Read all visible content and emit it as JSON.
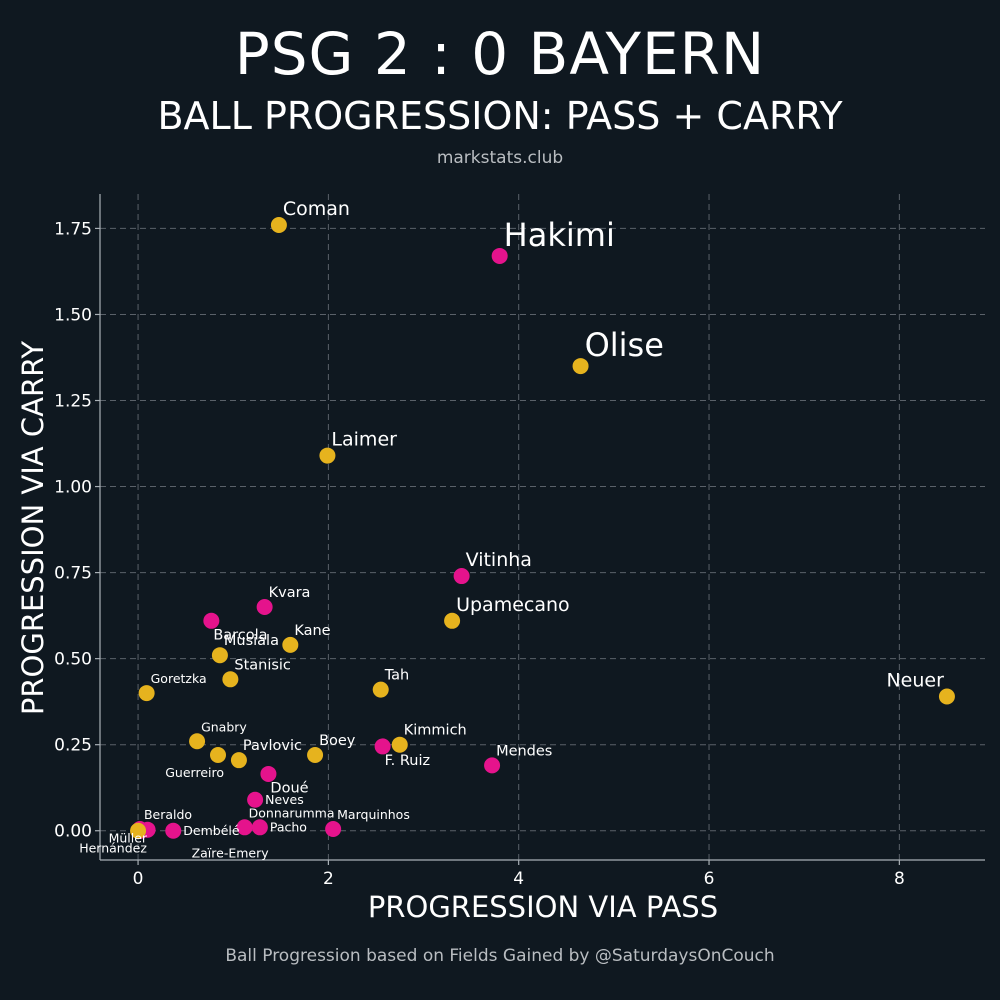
{
  "header": {
    "title": "PSG 2 : 0 BAYERN",
    "subtitle": "BALL PROGRESSION: PASS + CARRY",
    "source": "markstats.club"
  },
  "footer": {
    "note": "Ball Progression based on Fields Gained by @SaturdaysOnCouch"
  },
  "colors": {
    "background": "#0f1820",
    "psg": "#e5138c",
    "bayern": "#e6b31e",
    "grid": "#5a6169",
    "axis": "#a9b0b6",
    "text": "#ffffff",
    "muted": "#b9bdc1"
  },
  "chart_data": {
    "type": "scatter",
    "title": "PSG 2 : 0 BAYERN",
    "subtitle": "BALL PROGRESSION: PASS + CARRY",
    "xlabel": "PROGRESSION VIA PASS",
    "ylabel": "PROGRESSION VIA CARRY",
    "xlim": [
      -0.4,
      8.9
    ],
    "ylim": [
      -0.085,
      1.85
    ],
    "xticks": [
      0,
      2,
      4,
      6,
      8
    ],
    "xtick_labels": [
      "0",
      "2",
      "4",
      "6",
      "8"
    ],
    "yticks": [
      0,
      0.25,
      0.5,
      0.75,
      1.0,
      1.25,
      1.5,
      1.75
    ],
    "ytick_labels": [
      "0.00",
      "0.25",
      "0.50",
      "0.75",
      "1.00",
      "1.25",
      "1.50",
      "1.75"
    ],
    "grid": true,
    "series": [
      {
        "name": "PSG",
        "color": "#e5138c",
        "points": [
          {
            "label": "Hakimi",
            "x": 3.8,
            "y": 1.67,
            "size": "xl",
            "anchor": "upper-right"
          },
          {
            "label": "Vitinha",
            "x": 3.4,
            "y": 0.74,
            "size": "l",
            "anchor": "upper-right"
          },
          {
            "label": "Kvara",
            "x": 1.33,
            "y": 0.65,
            "size": "m",
            "anchor": "upper-right"
          },
          {
            "label": "Barcola",
            "x": 0.77,
            "y": 0.61,
            "size": "m",
            "anchor": "lower-right"
          },
          {
            "label": "F. Ruiz",
            "x": 2.57,
            "y": 0.245,
            "size": "m",
            "anchor": "lower-right"
          },
          {
            "label": "Mendes",
            "x": 3.72,
            "y": 0.19,
            "size": "m",
            "anchor": "upper-right"
          },
          {
            "label": "Doué",
            "x": 1.37,
            "y": 0.165,
            "size": "m",
            "anchor": "lower-right"
          },
          {
            "label": "Neves",
            "x": 1.23,
            "y": 0.09,
            "size": "s",
            "anchor": "right"
          },
          {
            "label": "Marquinhos",
            "x": 2.05,
            "y": 0.005,
            "size": "s",
            "anchor": "upper-right"
          },
          {
            "label": "Donnarumma",
            "x": 1.12,
            "y": 0.01,
            "size": "s",
            "anchor": "upper-right"
          },
          {
            "label": "Pacho",
            "x": 1.28,
            "y": 0.01,
            "size": "s",
            "anchor": "right"
          },
          {
            "label": "Dembélé",
            "x": 0.37,
            "y": 0.0,
            "size": "s",
            "anchor": "right"
          },
          {
            "label": "Zaïre-Emery",
            "x": 0.1,
            "y": 0.003,
            "size": "s",
            "anchor": "far-lower-right"
          },
          {
            "label": "Beraldo",
            "x": 0.02,
            "y": 0.005,
            "size": "s",
            "anchor": "upper-right"
          },
          {
            "label": "Hernández",
            "x": 0.03,
            "y": 0.0,
            "size": "s",
            "anchor": "lower-left"
          }
        ]
      },
      {
        "name": "Bayern",
        "color": "#e6b31e",
        "points": [
          {
            "label": "Coman",
            "x": 1.48,
            "y": 1.76,
            "size": "l",
            "anchor": "upper-right"
          },
          {
            "label": "Olise",
            "x": 4.65,
            "y": 1.35,
            "size": "xl",
            "anchor": "upper-right"
          },
          {
            "label": "Laimer",
            "x": 1.99,
            "y": 1.09,
            "size": "l",
            "anchor": "upper-right"
          },
          {
            "label": "Upamecano",
            "x": 3.3,
            "y": 0.61,
            "size": "l",
            "anchor": "upper-right"
          },
          {
            "label": "Neuer",
            "x": 8.5,
            "y": 0.39,
            "size": "l",
            "anchor": "upper-left"
          },
          {
            "label": "Tah",
            "x": 2.55,
            "y": 0.41,
            "size": "m",
            "anchor": "upper-right"
          },
          {
            "label": "Kane",
            "x": 1.6,
            "y": 0.54,
            "size": "m",
            "anchor": "upper-right"
          },
          {
            "label": "Musiala",
            "x": 0.86,
            "y": 0.51,
            "size": "m",
            "anchor": "upper-right"
          },
          {
            "label": "Stanisic",
            "x": 0.97,
            "y": 0.44,
            "size": "m",
            "anchor": "upper-right"
          },
          {
            "label": "Goretzka",
            "x": 0.09,
            "y": 0.4,
            "size": "s",
            "anchor": "upper-right"
          },
          {
            "label": "Gnabry",
            "x": 0.62,
            "y": 0.26,
            "size": "s",
            "anchor": "upper-right"
          },
          {
            "label": "Kimmich",
            "x": 2.75,
            "y": 0.25,
            "size": "m",
            "anchor": "upper-right"
          },
          {
            "label": "Boey",
            "x": 1.86,
            "y": 0.22,
            "size": "m",
            "anchor": "upper-right"
          },
          {
            "label": "Pavlovic",
            "x": 1.06,
            "y": 0.205,
            "size": "m",
            "anchor": "upper-right"
          },
          {
            "label": "Guerreiro",
            "x": 0.84,
            "y": 0.22,
            "size": "s",
            "anchor": "lower-left"
          },
          {
            "label": "Müller",
            "x": 0.0,
            "y": 0.0,
            "size": "s",
            "anchor": "left"
          }
        ]
      }
    ]
  }
}
